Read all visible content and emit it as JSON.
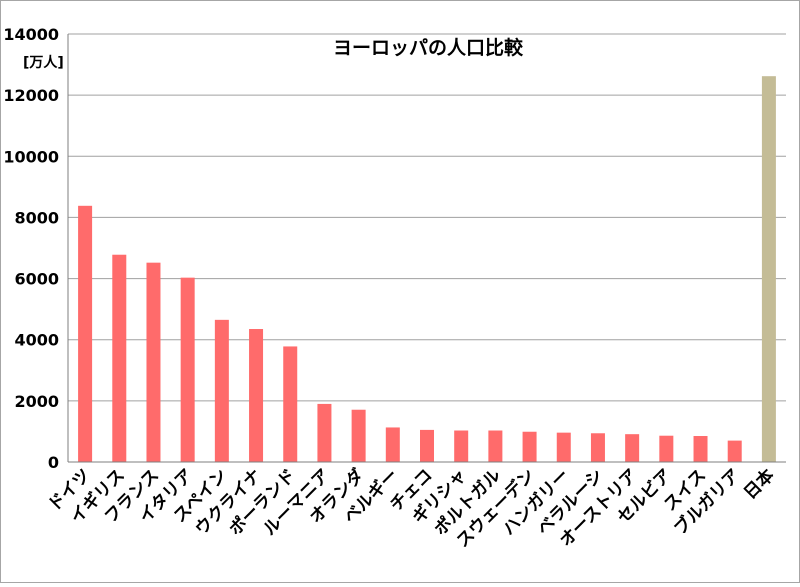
{
  "chart_data": {
    "type": "bar",
    "title": "ヨーロッパの人口比較",
    "ylabel": "[万人]",
    "ylim": [
      0,
      14000
    ],
    "yticks": [
      0,
      2000,
      4000,
      6000,
      8000,
      10000,
      12000,
      14000
    ],
    "grid": true,
    "legend": "none",
    "categories": [
      "ドイツ",
      "イギリス",
      "フランス",
      "イタリア",
      "スペイン",
      "ウクライナ",
      "ポーランド",
      "ルーマニア",
      "オランダ",
      "ベルギー",
      "チェコ",
      "ギリシャ",
      "ポルトガル",
      "スウェーデン",
      "ハンガリー",
      "ベラルーシ",
      "オーストリア",
      "セルビア",
      "スイス",
      "ブルガリア",
      "日本"
    ],
    "values": [
      8380,
      6780,
      6520,
      6030,
      4650,
      4350,
      3780,
      1900,
      1710,
      1130,
      1050,
      1030,
      1030,
      990,
      960,
      940,
      910,
      860,
      850,
      700,
      12620
    ],
    "colors": {
      "europe": "#ff6b6b",
      "japan": "#c4bc96",
      "grid": "#a0a0a0",
      "axis": "#7f7f7f"
    }
  }
}
